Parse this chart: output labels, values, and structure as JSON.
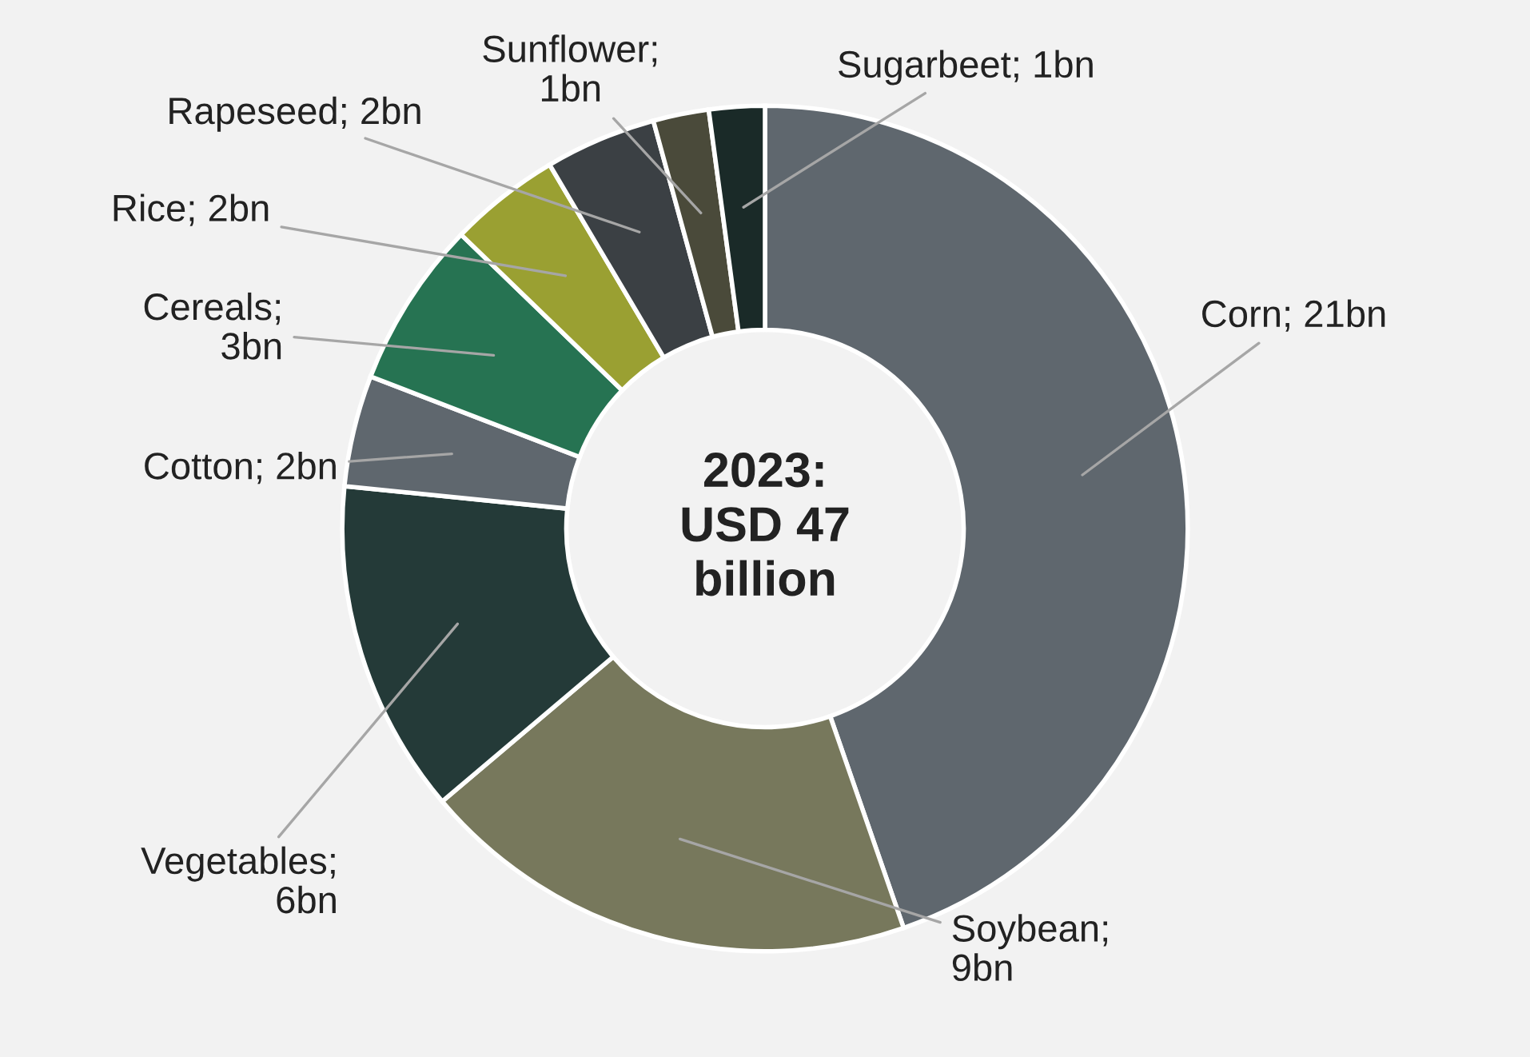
{
  "chart_data": {
    "type": "donut",
    "categories": [
      "Corn",
      "Soybean",
      "Vegetables",
      "Cotton",
      "Cereals",
      "Rice",
      "Rapeseed",
      "Sunflower",
      "Sugarbeet"
    ],
    "values": [
      21,
      9,
      6,
      2,
      3,
      2,
      2,
      1,
      1
    ],
    "colors": [
      "#5f676e",
      "#77785c",
      "#243a38",
      "#5f676e",
      "#267352",
      "#9aa032",
      "#3b4044",
      "#4a4a3a",
      "#1a2a28"
    ],
    "value_labels": [
      "; 21bn",
      ";\n9bn",
      ";\n6bn",
      "; 2bn",
      ";\n3bn",
      "; 2bn",
      "; 2bn",
      ";\n1bn",
      "; 1bn"
    ],
    "annotations": [
      "2023:\nUSD 47\nbillion"
    ]
  }
}
